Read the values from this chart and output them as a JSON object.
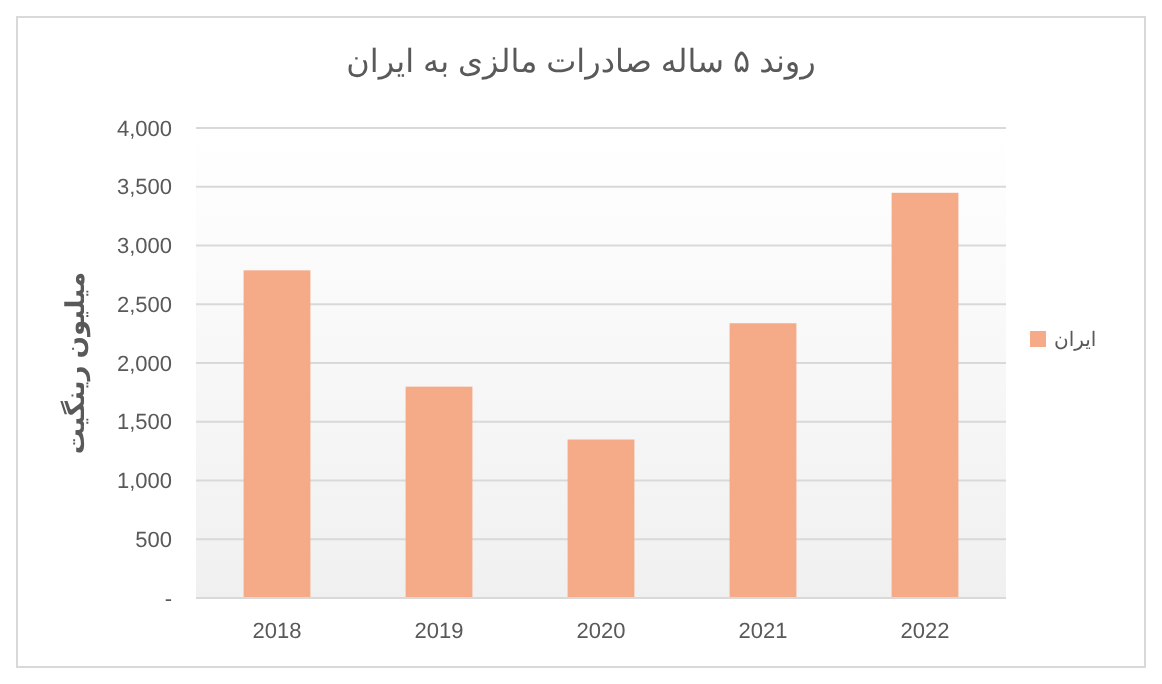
{
  "chart_data": {
    "type": "bar",
    "title": "روند ۵ ساله صادرات مالزی به ایران",
    "ylabel": "میلیون رینگیت",
    "categories": [
      "2018",
      "2019",
      "2020",
      "2021",
      "2022"
    ],
    "series": [
      {
        "name": "ایران",
        "color": "#f5aa88",
        "values": [
          2780,
          1790,
          1340,
          2330,
          3440
        ]
      }
    ],
    "ylim": [
      0,
      4000
    ],
    "yticks": [
      {
        "value": 0,
        "label": "-"
      },
      {
        "value": 500,
        "label": "500"
      },
      {
        "value": 1000,
        "label": "1,000"
      },
      {
        "value": 1500,
        "label": "1,500"
      },
      {
        "value": 2000,
        "label": "2,000"
      },
      {
        "value": 2500,
        "label": "2,500"
      },
      {
        "value": 3000,
        "label": "3,000"
      },
      {
        "value": 3500,
        "label": "3,500"
      },
      {
        "value": 4000,
        "label": "4,000"
      }
    ],
    "grid": "y",
    "legend": "right"
  }
}
